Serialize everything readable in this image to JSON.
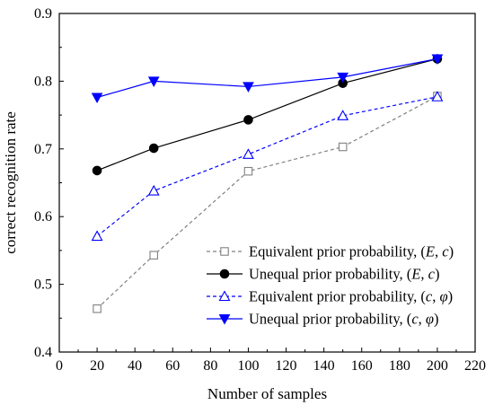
{
  "chart_data": {
    "type": "line",
    "xlabel": "Number of samples",
    "ylabel": "correct recognition rate",
    "xlim": [
      0,
      220
    ],
    "ylim": [
      0.4,
      0.9
    ],
    "x_ticks": [
      0,
      20,
      40,
      60,
      80,
      100,
      120,
      140,
      160,
      180,
      200,
      220
    ],
    "y_ticks": [
      0.4,
      0.5,
      0.6,
      0.7,
      0.8,
      0.9
    ],
    "x_tick_labels": [
      "0",
      "20",
      "40",
      "60",
      "80",
      "100",
      "120",
      "140",
      "160",
      "180",
      "200",
      "220"
    ],
    "y_tick_labels": [
      "0.4",
      "0.5",
      "0.6",
      "0.7",
      "0.8",
      "0.9"
    ],
    "grid": false,
    "legend_position": "bottom-right",
    "series": [
      {
        "name": "Equivalent prior probability, (E, c)",
        "name_parts": [
          "Equivalent prior probability, (",
          "E",
          ", ",
          "c",
          ")"
        ],
        "x": [
          20,
          50,
          100,
          150,
          200
        ],
        "y": [
          0.464,
          0.543,
          0.667,
          0.703,
          0.778
        ],
        "color": "#808080",
        "dash": true,
        "marker": "square-open"
      },
      {
        "name": "Unequal prior probability, (E, c)",
        "name_parts": [
          "Unequal prior probability, (",
          "E",
          ", ",
          "c",
          ")"
        ],
        "x": [
          20,
          50,
          100,
          150,
          200
        ],
        "y": [
          0.668,
          0.701,
          0.743,
          0.797,
          0.833
        ],
        "color": "#000000",
        "dash": false,
        "marker": "circle-filled"
      },
      {
        "name": "Equivalent prior probability, (c, φ)",
        "name_parts": [
          "Equivalent prior probability, (",
          "c",
          ", ",
          "φ",
          ")"
        ],
        "x": [
          20,
          50,
          100,
          150,
          200
        ],
        "y": [
          0.571,
          0.638,
          0.692,
          0.749,
          0.777
        ],
        "color": "#0000ff",
        "dash": true,
        "marker": "triangle-up-open"
      },
      {
        "name": "Unequal prior probability, (c, φ)",
        "name_parts": [
          "Unequal prior probability, (",
          "c",
          ", ",
          "φ",
          ")"
        ],
        "x": [
          20,
          50,
          100,
          150,
          200
        ],
        "y": [
          0.776,
          0.8,
          0.792,
          0.806,
          0.833
        ],
        "color": "#0000ff",
        "dash": false,
        "marker": "triangle-down-filled"
      }
    ]
  }
}
